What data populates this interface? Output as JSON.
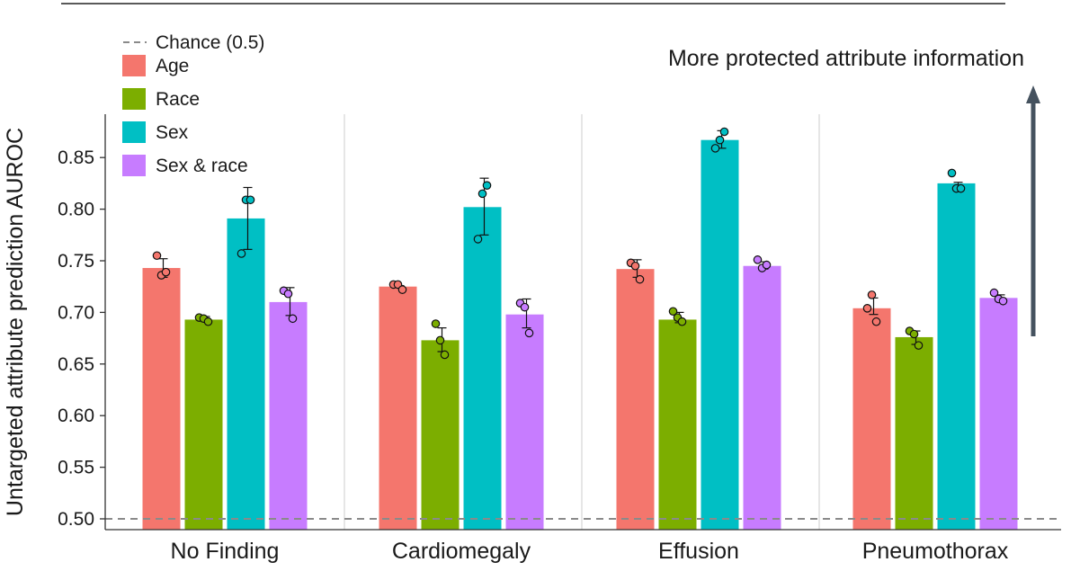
{
  "chart_data": {
    "type": "bar",
    "title": "",
    "xlabel": "",
    "ylabel": "Untargeted attribute prediction AUROC",
    "ylim": [
      0.49,
      0.89
    ],
    "yticks": [
      "0.50",
      "0.55",
      "0.60",
      "0.65",
      "0.70",
      "0.75",
      "0.80",
      "0.85"
    ],
    "categories": [
      "No Finding",
      "Cardiomegaly",
      "Effusion",
      "Pneumothorax"
    ],
    "series": [
      {
        "name": "Age",
        "color": "#F4766D",
        "values": [
          0.743,
          0.725,
          0.742,
          0.704
        ],
        "err_low": [
          0.734,
          0.725,
          0.734,
          0.698
        ],
        "err_high": [
          0.752,
          0.726,
          0.751,
          0.714
        ],
        "points": [
          [
            0.755,
            0.736,
            0.739
          ],
          [
            0.727,
            0.727,
            0.722
          ],
          [
            0.748,
            0.745,
            0.732
          ],
          [
            0.704,
            0.717,
            0.691
          ]
        ]
      },
      {
        "name": "Race",
        "color": "#7CAE00",
        "values": [
          0.693,
          0.673,
          0.693,
          0.676
        ],
        "err_low": [
          0.691,
          0.662,
          0.69,
          0.669
        ],
        "err_high": [
          0.696,
          0.685,
          0.7,
          0.682
        ],
        "points": [
          [
            0.695,
            0.694,
            0.691
          ],
          [
            0.689,
            0.673,
            0.659
          ],
          [
            0.701,
            0.695,
            0.691
          ],
          [
            0.682,
            0.679,
            0.668
          ]
        ]
      },
      {
        "name": "Sex",
        "color": "#00BFC4",
        "values": [
          0.791,
          0.802,
          0.867,
          0.825
        ],
        "err_low": [
          0.761,
          0.775,
          0.859,
          0.819
        ],
        "err_high": [
          0.821,
          0.83,
          0.876,
          0.826
        ],
        "points": [
          [
            0.757,
            0.809,
            0.809
          ],
          [
            0.771,
            0.815,
            0.823
          ],
          [
            0.859,
            0.867,
            0.875
          ],
          [
            0.835,
            0.82,
            0.82
          ]
        ]
      },
      {
        "name": "Sex & race",
        "color": "#C77CFF",
        "values": [
          0.71,
          0.698,
          0.745,
          0.714
        ],
        "err_low": [
          0.697,
          0.685,
          0.742,
          0.711
        ],
        "err_high": [
          0.724,
          0.713,
          0.749,
          0.717
        ],
        "points": [
          [
            0.721,
            0.718,
            0.694
          ],
          [
            0.709,
            0.705,
            0.68
          ],
          [
            0.751,
            0.743,
            0.746
          ],
          [
            0.719,
            0.713,
            0.711
          ]
        ]
      }
    ],
    "reference_line": {
      "label": "Chance (0.5)",
      "value": 0.5,
      "style": "dashed",
      "color": "#8a8a8a"
    },
    "annotation": {
      "text": "More protected attribute information",
      "arrow": "up"
    },
    "legend_position": "top-left",
    "grid": false
  }
}
